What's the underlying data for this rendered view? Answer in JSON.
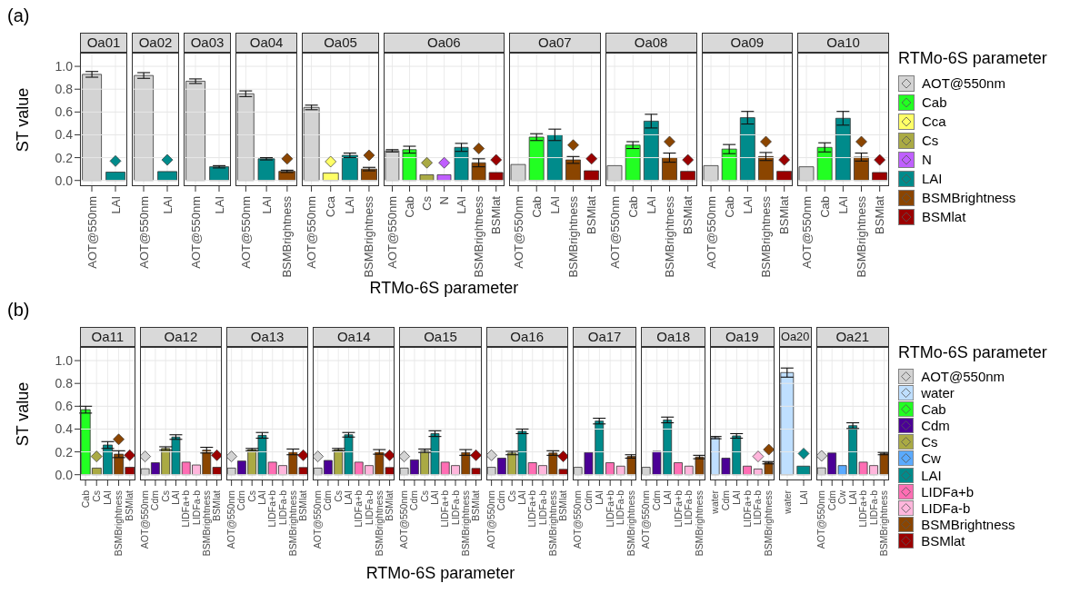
{
  "chart_data": [
    {
      "type": "bar",
      "title": "Oa01",
      "annotations": [
        "(a)"
      ],
      "ylabel": "ST value",
      "categories": [
        "AOT@550nm",
        "LAI"
      ],
      "series": [
        {
          "type": "bar",
          "values": [
            0.93,
            0.073
          ],
          "colors": [
            "#d3d3d3",
            "#008b8b"
          ],
          "errors": [
            0.025,
            null
          ]
        },
        {
          "type": "scatter",
          "x": [
            "LAI"
          ],
          "values": [
            0.17
          ],
          "colors": [
            "#008b8b"
          ]
        }
      ],
      "marker": "diamond",
      "ylim": [
        -0.05,
        1.12
      ],
      "yticks": [
        {
          "value": 0,
          "label": "0.0"
        },
        {
          "value": 0.2,
          "label": "0.2"
        },
        {
          "value": 0.4,
          "label": "0.4"
        },
        {
          "value": 0.6,
          "label": "0.6"
        },
        {
          "value": 0.8,
          "label": "0.8"
        },
        {
          "value": 1,
          "label": "1.0"
        }
      ],
      "grid": true
    },
    {
      "type": "bar",
      "title": "Oa02",
      "categories": [
        "AOT@550nm",
        "LAI"
      ],
      "series": [
        {
          "type": "bar",
          "values": [
            0.92,
            0.078
          ],
          "colors": [
            "#d3d3d3",
            "#008b8b"
          ],
          "errors": [
            0.025,
            null
          ]
        },
        {
          "type": "scatter",
          "x": [
            "LAI"
          ],
          "values": [
            0.18
          ],
          "colors": [
            "#008b8b"
          ]
        }
      ],
      "marker": "diamond",
      "ylim": [
        -0.05,
        1.12
      ],
      "yticks": [
        0,
        0.2,
        0.4,
        0.6,
        0.8,
        1
      ],
      "grid": true,
      "tick_labels": "x"
    },
    {
      "type": "bar",
      "title": "Oa03",
      "categories": [
        "AOT@550nm",
        "LAI"
      ],
      "series": [
        {
          "type": "bar",
          "values": [
            0.87,
            0.12
          ],
          "colors": [
            "#d3d3d3",
            "#008b8b"
          ],
          "errors": [
            0.02,
            0.01
          ]
        }
      ],
      "ylim": [
        -0.05,
        1.12
      ],
      "yticks": [
        0,
        0.2,
        0.4,
        0.6,
        0.8,
        1
      ],
      "grid": true,
      "tick_labels": "x"
    },
    {
      "type": "bar",
      "title": "Oa04",
      "categories": [
        "AOT@550nm",
        "LAI",
        "BSMBrightness"
      ],
      "series": [
        {
          "type": "bar",
          "values": [
            0.76,
            0.19,
            0.08
          ],
          "colors": [
            "#d3d3d3",
            "#008b8b",
            "#8b4500"
          ],
          "errors": [
            0.025,
            0.01,
            0.01
          ]
        },
        {
          "type": "scatter",
          "x": [
            "BSMBrightness"
          ],
          "values": [
            0.19
          ],
          "colors": [
            "#8b4500"
          ]
        }
      ],
      "marker": "diamond",
      "ylim": [
        -0.05,
        1.12
      ],
      "yticks": [
        0,
        0.2,
        0.4,
        0.6,
        0.8,
        1
      ],
      "grid": true,
      "tick_labels": "x"
    },
    {
      "type": "bar",
      "title": "Oa05",
      "categories": [
        "AOT@550nm",
        "Cca",
        "LAI",
        "BSMBrightness"
      ],
      "series": [
        {
          "type": "bar",
          "values": [
            0.64,
            0.065,
            0.22,
            0.1
          ],
          "colors": [
            "#d3d3d3",
            "#ffff66",
            "#008b8b",
            "#8b4500"
          ],
          "errors": [
            0.02,
            null,
            0.02,
            0.015
          ]
        },
        {
          "type": "scatter",
          "x": [
            "Cca",
            "BSMBrightness"
          ],
          "values": [
            0.165,
            0.22
          ],
          "colors": [
            "#ffff66",
            "#8b4500"
          ]
        }
      ],
      "marker": "diamond",
      "ylim": [
        -0.05,
        1.12
      ],
      "yticks": [
        0,
        0.2,
        0.4,
        0.6,
        0.8,
        1
      ],
      "grid": true,
      "tick_labels": "x"
    },
    {
      "type": "bar",
      "title": "Oa06",
      "xlabel": "RTMo-6S parameter",
      "categories": [
        "AOT@550nm",
        "Cab",
        "Cs",
        "N",
        "LAI",
        "BSMBrightness",
        "BSMlat"
      ],
      "series": [
        {
          "type": "bar",
          "values": [
            0.26,
            0.27,
            0.05,
            0.05,
            0.29,
            0.155,
            0.07
          ],
          "colors": [
            "#d3d3d3",
            "#22ff22",
            "#aaaa44",
            "#bf5fff",
            "#008b8b",
            "#8b4500",
            "#9b0000"
          ],
          "errors": [
            0.01,
            0.03,
            null,
            null,
            0.035,
            0.035,
            null
          ]
        },
        {
          "type": "scatter",
          "x": [
            "Cs",
            "N",
            "BSMBrightness",
            "BSMlat"
          ],
          "values": [
            0.155,
            0.155,
            0.28,
            0.18
          ],
          "colors": [
            "#aaaa44",
            "#bf5fff",
            "#8b4500",
            "#9b0000"
          ]
        }
      ],
      "marker": "diamond",
      "ylim": [
        -0.05,
        1.12
      ],
      "yticks": [
        0,
        0.2,
        0.4,
        0.6,
        0.8,
        1
      ],
      "grid": true,
      "tick_labels": "x"
    },
    {
      "type": "bar",
      "title": "Oa07",
      "categories": [
        "AOT@550nm",
        "Cab",
        "LAI",
        "BSMBrightness",
        "BSMlat"
      ],
      "series": [
        {
          "type": "bar",
          "values": [
            0.14,
            0.38,
            0.4,
            0.18,
            0.085
          ],
          "colors": [
            "#d3d3d3",
            "#22ff22",
            "#008b8b",
            "#8b4500",
            "#9b0000"
          ],
          "errors": [
            null,
            0.03,
            0.05,
            0.03,
            null
          ]
        },
        {
          "type": "scatter",
          "x": [
            "BSMBrightness",
            "BSMlat"
          ],
          "values": [
            0.31,
            0.19
          ],
          "colors": [
            "#8b4500",
            "#9b0000"
          ]
        }
      ],
      "marker": "diamond",
      "ylim": [
        -0.05,
        1.12
      ],
      "yticks": [
        0,
        0.2,
        0.4,
        0.6,
        0.8,
        1
      ],
      "grid": true,
      "tick_labels": "x"
    },
    {
      "type": "bar",
      "title": "Oa08",
      "categories": [
        "AOT@550nm",
        "Cab",
        "LAI",
        "BSMBrightness",
        "BSMlat"
      ],
      "series": [
        {
          "type": "bar",
          "values": [
            0.13,
            0.31,
            0.52,
            0.2,
            0.08
          ],
          "colors": [
            "#d3d3d3",
            "#22ff22",
            "#008b8b",
            "#8b4500",
            "#9b0000"
          ],
          "errors": [
            null,
            0.03,
            0.06,
            0.04,
            null
          ]
        },
        {
          "type": "scatter",
          "x": [
            "BSMBrightness",
            "BSMlat"
          ],
          "values": [
            0.34,
            0.18
          ],
          "colors": [
            "#8b4500",
            "#9b0000"
          ]
        }
      ],
      "marker": "diamond",
      "ylim": [
        -0.05,
        1.12
      ],
      "yticks": [
        0,
        0.2,
        0.4,
        0.6,
        0.8,
        1
      ],
      "grid": true,
      "tick_labels": "x"
    },
    {
      "type": "bar",
      "title": "Oa09",
      "categories": [
        "AOT@550nm",
        "Cab",
        "LAI",
        "BSMBrightness",
        "BSMlat"
      ],
      "series": [
        {
          "type": "bar",
          "values": [
            0.13,
            0.275,
            0.55,
            0.21,
            0.08
          ],
          "colors": [
            "#d3d3d3",
            "#22ff22",
            "#008b8b",
            "#8b4500",
            "#9b0000"
          ],
          "errors": [
            null,
            0.04,
            0.055,
            0.035,
            null
          ]
        },
        {
          "type": "scatter",
          "x": [
            "BSMBrightness",
            "BSMlat"
          ],
          "values": [
            0.34,
            0.18
          ],
          "colors": [
            "#8b4500",
            "#9b0000"
          ]
        }
      ],
      "marker": "diamond",
      "ylim": [
        -0.05,
        1.12
      ],
      "yticks": [
        0,
        0.2,
        0.4,
        0.6,
        0.8,
        1
      ],
      "grid": true,
      "tick_labels": "x"
    },
    {
      "type": "bar",
      "title": "Oa10",
      "categories": [
        "AOT@550nm",
        "Cab",
        "LAI",
        "BSMBrightness",
        "BSMlat"
      ],
      "series": [
        {
          "type": "bar",
          "values": [
            0.12,
            0.29,
            0.545,
            0.205,
            0.07
          ],
          "colors": [
            "#d3d3d3",
            "#22ff22",
            "#008b8b",
            "#8b4500",
            "#9b0000"
          ],
          "errors": [
            null,
            0.04,
            0.06,
            0.035,
            null
          ]
        },
        {
          "type": "scatter",
          "x": [
            "BSMBrightness",
            "BSMlat"
          ],
          "values": [
            0.34,
            0.18
          ],
          "colors": [
            "#8b4500",
            "#9b0000"
          ]
        }
      ],
      "marker": "diamond",
      "ylim": [
        -0.05,
        1.12
      ],
      "yticks": [
        0,
        0.2,
        0.4,
        0.6,
        0.8,
        1
      ],
      "grid": true,
      "tick_labels": "x"
    },
    {
      "type": "other",
      "title": "RTMo-6S parameter",
      "categories": [
        "AOT@550nm",
        "Cab",
        "Cca",
        "Cs",
        "N",
        "LAI",
        "BSMBrightness",
        "BSMlat"
      ],
      "colors": [
        "#d3d3d3",
        "#22ff22",
        "#ffff66",
        "#aaaa44",
        "#bf5fff",
        "#008b8b",
        "#8b4500",
        "#9b0000"
      ]
    },
    {
      "type": "bar",
      "title": "Oa11",
      "annotations": [
        "(b)"
      ],
      "ylabel": "ST value",
      "categories": [
        "Cab",
        "Cs",
        "LAI",
        "BSMBrightness",
        "BSMlat"
      ],
      "series": [
        {
          "type": "bar",
          "values": [
            0.57,
            0.058,
            0.26,
            0.18,
            0.065
          ],
          "colors": [
            "#22ff22",
            "#aaaa44",
            "#008b8b",
            "#8b4500",
            "#9b0000"
          ],
          "errors": [
            0.03,
            null,
            0.03,
            0.03,
            null
          ]
        },
        {
          "type": "scatter",
          "x": [
            "Cs",
            "BSMBrightness",
            "BSMlat"
          ],
          "values": [
            0.16,
            0.31,
            0.17
          ],
          "colors": [
            "#aaaa44",
            "#8b4500",
            "#9b0000"
          ]
        }
      ],
      "marker": "diamond",
      "ylim": [
        -0.05,
        1.12
      ],
      "yticks": [
        {
          "value": 0,
          "label": "0.0"
        },
        {
          "value": 0.2,
          "label": "0.2"
        },
        {
          "value": 0.4,
          "label": "0.4"
        },
        {
          "value": 0.6,
          "label": "0.6"
        },
        {
          "value": 0.8,
          "label": "0.8"
        },
        {
          "value": 1,
          "label": "1.0"
        }
      ],
      "grid": true
    },
    {
      "type": "bar",
      "title": "Oa12",
      "categories": [
        "AOT@550nm",
        "Cdm",
        "Cs",
        "LAI",
        "LIDFa+b",
        "LIDFa-b",
        "BSMBrightness",
        "BSMlat"
      ],
      "series": [
        {
          "type": "bar",
          "values": [
            0.052,
            0.105,
            0.23,
            0.33,
            0.11,
            0.085,
            0.215,
            0.065
          ],
          "colors": [
            "#d3d3d3",
            "#4b0096",
            "#aaaa44",
            "#008b8b",
            "#ff6eb4",
            "#ffb6dc",
            "#8b4500",
            "#9b0000"
          ],
          "errors": [
            null,
            null,
            0.015,
            0.02,
            null,
            null,
            0.025,
            null
          ]
        },
        {
          "type": "scatter",
          "x": [
            "AOT@550nm",
            "BSMlat"
          ],
          "values": [
            0.16,
            0.17
          ],
          "colors": [
            "#d3d3d3",
            "#9b0000"
          ]
        }
      ],
      "marker": "diamond",
      "ylim": [
        -0.05,
        1.12
      ],
      "yticks": [
        0,
        0.2,
        0.4,
        0.6,
        0.8,
        1
      ],
      "grid": true,
      "tick_labels": "x"
    },
    {
      "type": "bar",
      "title": "Oa13",
      "categories": [
        "AOT@550nm",
        "Cdm",
        "Cs",
        "LAI",
        "LIDFa+b",
        "LIDFa-b",
        "BSMBrightness",
        "BSMlat"
      ],
      "series": [
        {
          "type": "bar",
          "values": [
            0.058,
            0.12,
            0.22,
            0.345,
            0.11,
            0.08,
            0.2,
            0.063
          ],
          "colors": [
            "#d3d3d3",
            "#4b0096",
            "#aaaa44",
            "#008b8b",
            "#ff6eb4",
            "#ffb6dc",
            "#8b4500",
            "#9b0000"
          ],
          "errors": [
            null,
            null,
            0.01,
            0.025,
            null,
            null,
            0.025,
            null
          ]
        },
        {
          "type": "scatter",
          "x": [
            "AOT@550nm",
            "BSMlat"
          ],
          "values": [
            0.16,
            0.17
          ],
          "colors": [
            "#d3d3d3",
            "#9b0000"
          ]
        }
      ],
      "marker": "diamond",
      "ylim": [
        -0.05,
        1.12
      ],
      "yticks": [
        0,
        0.2,
        0.4,
        0.6,
        0.8,
        1
      ],
      "grid": true,
      "tick_labels": "x"
    },
    {
      "type": "bar",
      "title": "Oa14",
      "categories": [
        "AOT@550nm",
        "Cdm",
        "Cs",
        "LAI",
        "LIDFa+b",
        "LIDFa-b",
        "BSMBrightness",
        "BSMlat"
      ],
      "series": [
        {
          "type": "bar",
          "values": [
            0.058,
            0.125,
            0.22,
            0.35,
            0.11,
            0.08,
            0.2,
            0.063
          ],
          "colors": [
            "#d3d3d3",
            "#4b0096",
            "#aaaa44",
            "#008b8b",
            "#ff6eb4",
            "#ffb6dc",
            "#8b4500",
            "#9b0000"
          ],
          "errors": [
            null,
            null,
            0.01,
            0.02,
            null,
            null,
            0.02,
            null
          ]
        },
        {
          "type": "scatter",
          "x": [
            "AOT@550nm",
            "BSMlat"
          ],
          "values": [
            0.16,
            0.17
          ],
          "colors": [
            "#d3d3d3",
            "#9b0000"
          ]
        }
      ],
      "marker": "diamond",
      "ylim": [
        -0.05,
        1.12
      ],
      "yticks": [
        0,
        0.2,
        0.4,
        0.6,
        0.8,
        1
      ],
      "grid": true,
      "tick_labels": "x"
    },
    {
      "type": "bar",
      "title": "Oa15",
      "xlabel": "RTMo-6S parameter",
      "categories": [
        "AOT@550nm",
        "Cdm",
        "Cs",
        "LAI",
        "LIDFa+b",
        "LIDFa-b",
        "BSMBrightness",
        "BSMlat"
      ],
      "series": [
        {
          "type": "bar",
          "values": [
            0.058,
            0.13,
            0.21,
            0.36,
            0.11,
            0.08,
            0.195,
            0.055
          ],
          "colors": [
            "#d3d3d3",
            "#4b0096",
            "#aaaa44",
            "#008b8b",
            "#ff6eb4",
            "#ffb6dc",
            "#8b4500",
            "#9b0000"
          ],
          "errors": [
            null,
            null,
            0.015,
            0.025,
            null,
            null,
            0.025,
            null
          ]
        },
        {
          "type": "scatter",
          "x": [
            "AOT@550nm",
            "BSMlat"
          ],
          "values": [
            0.16,
            0.17
          ],
          "colors": [
            "#d3d3d3",
            "#9b0000"
          ]
        }
      ],
      "marker": "diamond",
      "ylim": [
        -0.05,
        1.12
      ],
      "yticks": [
        0,
        0.2,
        0.4,
        0.6,
        0.8,
        1
      ],
      "grid": true,
      "tick_labels": "x"
    },
    {
      "type": "bar",
      "title": "Oa16",
      "categories": [
        "AOT@550nm",
        "Cdm",
        "Cs",
        "LAI",
        "LIDFa+b",
        "LIDFa-b",
        "BSMBrightness",
        "BSMlat"
      ],
      "series": [
        {
          "type": "bar",
          "values": [
            0.065,
            0.145,
            0.19,
            0.38,
            0.105,
            0.08,
            0.19,
            0.047
          ],
          "colors": [
            "#d3d3d3",
            "#4b0096",
            "#aaaa44",
            "#008b8b",
            "#ff6eb4",
            "#ffb6dc",
            "#8b4500",
            "#9b0000"
          ],
          "errors": [
            null,
            null,
            0.015,
            0.02,
            null,
            null,
            0.02,
            null
          ]
        },
        {
          "type": "scatter",
          "x": [
            "AOT@550nm",
            "BSMlat"
          ],
          "values": [
            0.17,
            0.16
          ],
          "colors": [
            "#d3d3d3",
            "#9b0000"
          ]
        }
      ],
      "marker": "diamond",
      "ylim": [
        -0.05,
        1.12
      ],
      "yticks": [
        0,
        0.2,
        0.4,
        0.6,
        0.8,
        1
      ],
      "grid": true,
      "tick_labels": "x"
    },
    {
      "type": "bar",
      "title": "Oa17",
      "categories": [
        "AOT@550nm",
        "Cdm",
        "LAI",
        "LIDFa+b",
        "LIDFa-b",
        "BSMBrightness"
      ],
      "series": [
        {
          "type": "bar",
          "values": [
            0.065,
            0.195,
            0.47,
            0.105,
            0.075,
            0.16
          ],
          "colors": [
            "#d3d3d3",
            "#4b0096",
            "#008b8b",
            "#ff6eb4",
            "#ffb6dc",
            "#8b4500"
          ],
          "errors": [
            null,
            null,
            0.025,
            null,
            null,
            0.015
          ]
        }
      ],
      "ylim": [
        -0.05,
        1.12
      ],
      "yticks": [
        0,
        0.2,
        0.4,
        0.6,
        0.8,
        1
      ],
      "grid": true,
      "tick_labels": "x"
    },
    {
      "type": "bar",
      "title": "Oa18",
      "categories": [
        "AOT@550nm",
        "Cdm",
        "LAI",
        "LIDFa+b",
        "LIDFa-b",
        "BSMBrightness"
      ],
      "series": [
        {
          "type": "bar",
          "values": [
            0.065,
            0.205,
            0.48,
            0.105,
            0.075,
            0.155
          ],
          "colors": [
            "#d3d3d3",
            "#4b0096",
            "#008b8b",
            "#ff6eb4",
            "#ffb6dc",
            "#8b4500"
          ],
          "errors": [
            null,
            null,
            0.025,
            null,
            null,
            0.015
          ]
        }
      ],
      "ylim": [
        -0.05,
        1.12
      ],
      "yticks": [
        0,
        0.2,
        0.4,
        0.6,
        0.8,
        1
      ],
      "grid": true,
      "tick_labels": "x"
    },
    {
      "type": "bar",
      "title": "Oa19",
      "categories": [
        "water",
        "Cdm",
        "LAI",
        "LIDFa+b",
        "LIDFa-b",
        "BSMBrightness"
      ],
      "series": [
        {
          "type": "bar",
          "values": [
            0.325,
            0.145,
            0.34,
            0.075,
            0.05,
            0.105
          ],
          "colors": [
            "#bfdfff",
            "#4b0096",
            "#008b8b",
            "#ff6eb4",
            "#ffb6dc",
            "#8b4500"
          ],
          "errors": [
            0.01,
            null,
            0.02,
            null,
            null,
            0.01
          ]
        },
        {
          "type": "scatter",
          "x": [
            "LIDFa-b",
            "BSMBrightness"
          ],
          "values": [
            0.16,
            0.22
          ],
          "colors": [
            "#ffb6dc",
            "#8b4500"
          ]
        }
      ],
      "marker": "diamond",
      "ylim": [
        -0.05,
        1.12
      ],
      "yticks": [
        0,
        0.2,
        0.4,
        0.6,
        0.8,
        1
      ],
      "grid": true,
      "tick_labels": "x"
    },
    {
      "type": "bar",
      "title": "Oa20",
      "categories": [
        "water",
        "LAI"
      ],
      "series": [
        {
          "type": "bar",
          "values": [
            0.895,
            0.075
          ],
          "colors": [
            "#bfdfff",
            "#008b8b"
          ],
          "errors": [
            0.04,
            null
          ]
        },
        {
          "type": "scatter",
          "x": [
            "LAI"
          ],
          "values": [
            0.185
          ],
          "colors": [
            "#008b8b"
          ]
        }
      ],
      "marker": "diamond",
      "ylim": [
        -0.05,
        1.12
      ],
      "yticks": [
        0,
        0.2,
        0.4,
        0.6,
        0.8,
        1
      ],
      "grid": true,
      "tick_labels": "x"
    },
    {
      "type": "bar",
      "title": "Oa21",
      "categories": [
        "AOT@550nm",
        "Cdm",
        "Cw",
        "LAI",
        "LIDFa+b",
        "LIDFa-b",
        "BSMBrightness"
      ],
      "series": [
        {
          "type": "bar",
          "values": [
            0.06,
            0.19,
            0.08,
            0.43,
            0.11,
            0.08,
            0.185
          ],
          "colors": [
            "#d3d3d3",
            "#4b0096",
            "#5aaaff",
            "#008b8b",
            "#ff6eb4",
            "#ffb6dc",
            "#8b4500"
          ],
          "errors": [
            null,
            null,
            null,
            0.025,
            null,
            null,
            0.01
          ]
        },
        {
          "type": "scatter",
          "x": [
            "AOT@550nm"
          ],
          "values": [
            0.165
          ],
          "colors": [
            "#d3d3d3"
          ]
        }
      ],
      "marker": "diamond",
      "ylim": [
        -0.05,
        1.12
      ],
      "yticks": [
        0,
        0.2,
        0.4,
        0.6,
        0.8,
        1
      ],
      "grid": true,
      "tick_labels": "x"
    },
    {
      "type": "other",
      "title": "RTMo-6S parameter",
      "categories": [
        "AOT@550nm",
        "water",
        "Cab",
        "Cdm",
        "Cs",
        "Cw",
        "LAI",
        "LIDFa+b",
        "LIDFa-b",
        "BSMBrightness",
        "BSMlat"
      ],
      "colors": [
        "#d3d3d3",
        "#bfdfff",
        "#22ff22",
        "#4b0096",
        "#aaaa44",
        "#5aaaff",
        "#008b8b",
        "#ff6eb4",
        "#ffb6dc",
        "#8b4500",
        "#9b0000"
      ]
    }
  ]
}
